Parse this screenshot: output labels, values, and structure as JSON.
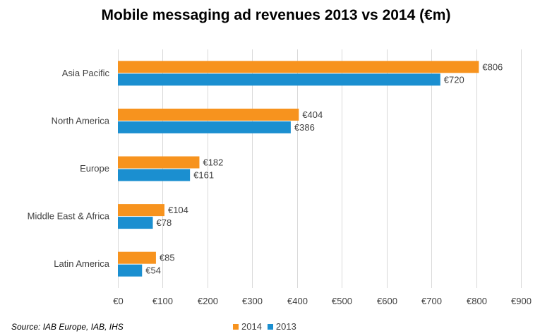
{
  "chart_data": {
    "type": "bar",
    "orientation": "horizontal",
    "title": "Mobile messaging ad revenues 2013 vs 2014 (€m)",
    "categories": [
      "Asia Pacific",
      "North America",
      "Europe",
      "Middle East & Africa",
      "Latin America"
    ],
    "series": [
      {
        "name": "2014",
        "color": "#f7931e",
        "values": [
          806,
          404,
          182,
          104,
          85
        ],
        "labels": [
          "€806",
          "€404",
          "€182",
          "€104",
          "€85"
        ]
      },
      {
        "name": "2013",
        "color": "#1b8fd0",
        "values": [
          720,
          386,
          161,
          78,
          54
        ],
        "labels": [
          "€720",
          "€386",
          "€161",
          "€78",
          "€54"
        ]
      }
    ],
    "xlim": [
      0,
      900
    ],
    "xticks": [
      0,
      100,
      200,
      300,
      400,
      500,
      600,
      700,
      800,
      900
    ],
    "xtick_labels": [
      "€0",
      "€100",
      "€200",
      "€300",
      "€400",
      "€500",
      "€600",
      "€700",
      "€800",
      "€900"
    ],
    "xlabel": "",
    "ylabel": "",
    "grid": true,
    "legend_position": "bottom"
  },
  "source": "Source: IAB Europe, IAB, IHS"
}
